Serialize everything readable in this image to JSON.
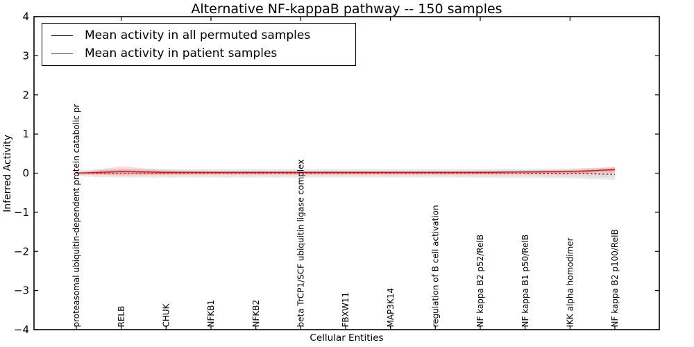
{
  "chart_data": {
    "type": "line",
    "title": "Alternative NF-kappaB pathway -- 150 samples",
    "xlabel": "Cellular Entities",
    "ylabel": "Inferred Activity",
    "ylim": [
      -4,
      4
    ],
    "yticks": [
      4,
      3,
      2,
      1,
      0,
      -1,
      -2,
      -3,
      -4
    ],
    "ytick_labels": [
      "4",
      "3",
      "2",
      "1",
      "0",
      "−1",
      "−2",
      "−3",
      "−4"
    ],
    "grid": false,
    "legend_position": "upper left",
    "categories": [
      "proteasomal ubiquitin-dependent protein catabolic pr",
      "RELB",
      "CHUK",
      "NFKB1",
      "NFKB2",
      "beta TrCP1/SCF ubiquitin ligase complex",
      "FBXW11",
      "MAP3K14",
      "regulation of B cell activation",
      "NF kappa B2 p52/RelB",
      "NF kappa B1 p50/RelB",
      "IKK alpha homodimer",
      "NF kappa B2 p100/RelB"
    ],
    "series": [
      {
        "name": "Mean activity in all permuted samples",
        "color": "#000000",
        "line_style": "dotted",
        "values": [
          0.0,
          0.0,
          0.0,
          0.0,
          0.0,
          0.0,
          0.0,
          0.0,
          0.0,
          0.0,
          0.0,
          -0.01,
          -0.03
        ],
        "band_upper": [
          0.08,
          0.1,
          0.1,
          0.1,
          0.1,
          0.1,
          0.1,
          0.1,
          0.1,
          0.1,
          0.11,
          0.12,
          0.15
        ],
        "band_lower": [
          -0.08,
          -0.11,
          -0.11,
          -0.11,
          -0.11,
          -0.11,
          -0.11,
          -0.11,
          -0.11,
          -0.11,
          -0.12,
          -0.13,
          -0.17
        ],
        "band_color": "#d6d6d6"
      },
      {
        "name": "Mean activity in patient samples",
        "color": "#ff0000",
        "line_style": "solid",
        "values": [
          0.0,
          0.04,
          0.02,
          0.02,
          0.02,
          0.02,
          0.02,
          0.02,
          0.02,
          0.02,
          0.03,
          0.04,
          0.09
        ],
        "band_upper": [
          0.01,
          0.18,
          0.08,
          0.05,
          0.05,
          0.05,
          0.05,
          0.05,
          0.05,
          0.06,
          0.07,
          0.09,
          0.16
        ],
        "band_lower": [
          -0.02,
          -0.06,
          -0.04,
          -0.03,
          -0.03,
          -0.03,
          -0.03,
          -0.03,
          -0.03,
          -0.03,
          -0.03,
          -0.03,
          0.02
        ],
        "band_color": "#ff8080"
      }
    ]
  }
}
